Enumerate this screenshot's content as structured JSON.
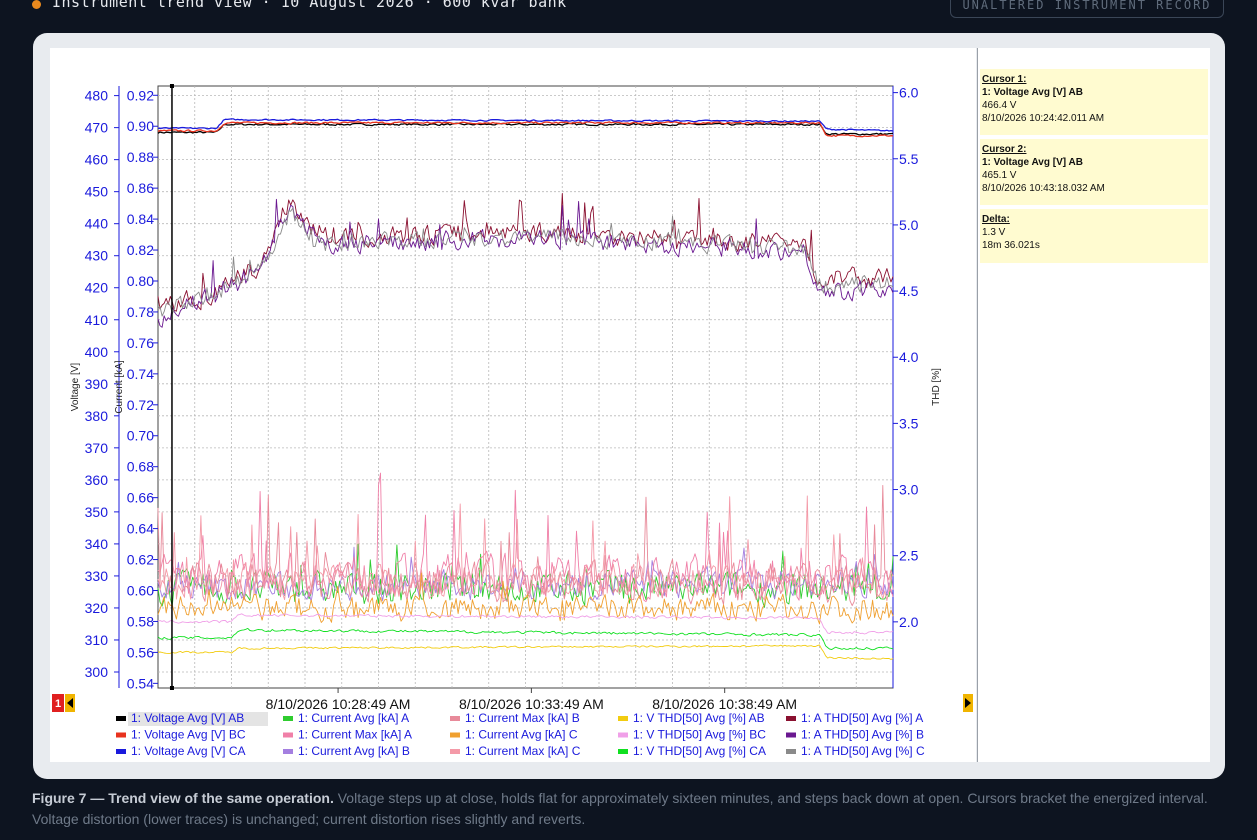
{
  "header": {
    "title": "Instrument trend view · 10 August 2026 · 600 kvar bank",
    "stamp": "UNALTERED INSTRUMENT RECORD"
  },
  "sidebar": {
    "cursor1": {
      "title": "Cursor 1:",
      "channel": "1: Voltage Avg [V] AB",
      "value": "466.4 V",
      "time": "8/10/2026 10:24:42.011 AM"
    },
    "cursor2": {
      "title": "Cursor 2:",
      "channel": "1: Voltage Avg [V] AB",
      "value": "465.1 V",
      "time": "8/10/2026 10:43:18.032 AM"
    },
    "delta": {
      "title": "Delta:",
      "value": "1.3 V",
      "duration": "18m 36.021s"
    }
  },
  "caption": {
    "bold": "Figure 7 — Trend view of the same operation.",
    "text": " Voltage steps up at close, holds flat for approximately sixteen minutes, and steps back down at open. Cursors bracket the energized interval. Voltage distortion (lower traces) is unchanged; current distortion rises slightly and reverts."
  },
  "nav": {
    "cursor_marker": "1"
  },
  "chart_data": {
    "type": "line",
    "x_ticks": [
      "8/10/2026 10:28:49 AM",
      "8/10/2026 10:33:49 AM",
      "8/10/2026 10:38:49 AM"
    ],
    "axes": {
      "voltage": {
        "label": "Voltage [V]",
        "ylim": [
          295,
          483
        ],
        "ticks": [
          300,
          310,
          320,
          330,
          340,
          350,
          360,
          370,
          380,
          390,
          400,
          410,
          420,
          430,
          440,
          450,
          460,
          470,
          480
        ]
      },
      "current": {
        "label": "Current [kA]",
        "ylim": [
          0.537,
          0.926
        ],
        "ticks": [
          "0.54",
          "0.56",
          "0.58",
          "0.60",
          "0.62",
          "0.64",
          "0.66",
          "0.68",
          "0.70",
          "0.72",
          "0.74",
          "0.76",
          "0.78",
          "0.80",
          "0.82",
          "0.84",
          "0.86",
          "0.88",
          "0.90",
          "0.92"
        ]
      },
      "thd": {
        "label": "THD [%]",
        "ylim": [
          1.5,
          6.05
        ],
        "ticks": [
          "2.0",
          "2.5",
          "3.0",
          "3.5",
          "4.0",
          "4.5",
          "5.0",
          "5.5",
          "6.0"
        ]
      }
    },
    "grid": true,
    "legend_position": "bottom",
    "series": [
      {
        "name": "1: Voltage Avg [V] AB",
        "color": "#000000",
        "axis": "voltage",
        "base": [
          [
            0,
            468.5
          ],
          [
            0.08,
            468.5
          ],
          [
            0.09,
            471
          ],
          [
            0.9,
            471
          ],
          [
            0.91,
            468
          ],
          [
            1,
            468
          ]
        ],
        "noise": 0.4,
        "spike": 0
      },
      {
        "name": "1: Voltage Avg [V] BC",
        "color": "#e8321e",
        "axis": "voltage",
        "base": [
          [
            0,
            469
          ],
          [
            0.08,
            469
          ],
          [
            0.09,
            471.5
          ],
          [
            0.9,
            471.5
          ],
          [
            0.91,
            467.5
          ],
          [
            1,
            467.5
          ]
        ],
        "noise": 0.4,
        "spike": 0
      },
      {
        "name": "1: Voltage Avg [V] CA",
        "color": "#1a1adc",
        "axis": "voltage",
        "base": [
          [
            0,
            469.8
          ],
          [
            0.08,
            469.8
          ],
          [
            0.09,
            472.5
          ],
          [
            0.9,
            472
          ],
          [
            0.91,
            469.5
          ],
          [
            1,
            469
          ]
        ],
        "noise": 0.3,
        "spike": 0
      },
      {
        "name": "1: Current Avg [kA] A",
        "color": "#2fcc2f",
        "axis": "thd",
        "base": [
          [
            0,
            2.25
          ],
          [
            1,
            2.25
          ]
        ],
        "noise": 0.17,
        "spike": 0.05
      },
      {
        "name": "1: Current Avg [kA] B",
        "color": "#a47fe0",
        "axis": "thd",
        "base": [
          [
            0,
            2.25
          ],
          [
            1,
            2.3
          ]
        ],
        "noise": 0.15,
        "spike": 0.04
      },
      {
        "name": "1: Current Max [kA] A",
        "color": "#f080a8",
        "axis": "thd",
        "base": [
          [
            0,
            2.35
          ],
          [
            1,
            2.35
          ]
        ],
        "noise": 0.22,
        "spike": 0.12
      },
      {
        "name": "1: Current Max [kA] B",
        "color": "#e88a9a",
        "axis": "thd",
        "base": [
          [
            0,
            2.3
          ],
          [
            1,
            2.3
          ]
        ],
        "noise": 0.2,
        "spike": 0.1
      },
      {
        "name": "1: Current Max [kA] C",
        "color": "#f49aa8",
        "axis": "thd",
        "base": [
          [
            0,
            2.3
          ],
          [
            1,
            2.3
          ]
        ],
        "noise": 0.18,
        "spike": 0.1
      },
      {
        "name": "1: Current Avg [kA] C",
        "color": "#f0a030",
        "axis": "thd",
        "base": [
          [
            0,
            2.1
          ],
          [
            1,
            2.1
          ]
        ],
        "noise": 0.14,
        "spike": 0.03
      },
      {
        "name": "1: V THD[50] Avg [%] AB",
        "color": "#f2cc10",
        "axis": "thd",
        "base": [
          [
            0,
            1.77
          ],
          [
            0.1,
            1.77
          ],
          [
            0.11,
            1.8
          ],
          [
            0.9,
            1.82
          ],
          [
            0.91,
            1.73
          ],
          [
            1,
            1.72
          ]
        ],
        "noise": 0.01,
        "spike": 0
      },
      {
        "name": "1: V THD[50] Avg [%] BC",
        "color": "#f0a0e8",
        "axis": "thd",
        "base": [
          [
            0,
            2.0
          ],
          [
            0.1,
            2.0
          ],
          [
            0.11,
            2.05
          ],
          [
            0.9,
            2.03
          ],
          [
            0.91,
            1.92
          ],
          [
            1,
            1.92
          ]
        ],
        "noise": 0.015,
        "spike": 0
      },
      {
        "name": "1: V THD[50] Avg [%] CA",
        "color": "#10e020",
        "axis": "thd",
        "base": [
          [
            0,
            1.88
          ],
          [
            0.1,
            1.88
          ],
          [
            0.11,
            1.94
          ],
          [
            0.9,
            1.9
          ],
          [
            0.91,
            1.8
          ],
          [
            1,
            1.8
          ]
        ],
        "noise": 0.015,
        "spike": 0
      },
      {
        "name": "1: A THD[50] Avg [%] A",
        "color": "#8a1030",
        "axis": "thd",
        "base": [
          [
            0,
            4.4
          ],
          [
            0.07,
            4.45
          ],
          [
            0.14,
            4.7
          ],
          [
            0.18,
            5.2
          ],
          [
            0.22,
            4.9
          ],
          [
            0.5,
            4.95
          ],
          [
            0.88,
            4.85
          ],
          [
            0.9,
            4.6
          ],
          [
            1,
            4.6
          ]
        ],
        "noise": 0.1,
        "spike": 0.05
      },
      {
        "name": "1: A THD[50] Avg [%] B",
        "color": "#6a1890",
        "axis": "thd",
        "base": [
          [
            0,
            4.3
          ],
          [
            0.07,
            4.45
          ],
          [
            0.14,
            4.65
          ],
          [
            0.18,
            5.1
          ],
          [
            0.22,
            4.85
          ],
          [
            0.5,
            4.9
          ],
          [
            0.88,
            4.8
          ],
          [
            0.9,
            4.5
          ],
          [
            1,
            4.5
          ]
        ],
        "noise": 0.1,
        "spike": 0.05
      },
      {
        "name": "1: A THD[50] Avg [%] C",
        "color": "#8a8a8a",
        "axis": "thd",
        "base": [
          [
            0,
            4.35
          ],
          [
            0.07,
            4.45
          ],
          [
            0.14,
            4.68
          ],
          [
            0.18,
            5.1
          ],
          [
            0.22,
            4.85
          ],
          [
            0.5,
            4.92
          ],
          [
            0.88,
            4.82
          ],
          [
            0.9,
            4.55
          ],
          [
            1,
            4.55
          ]
        ],
        "noise": 0.09,
        "spike": 0.03
      }
    ],
    "cursor_x": [
      0.019
    ]
  }
}
